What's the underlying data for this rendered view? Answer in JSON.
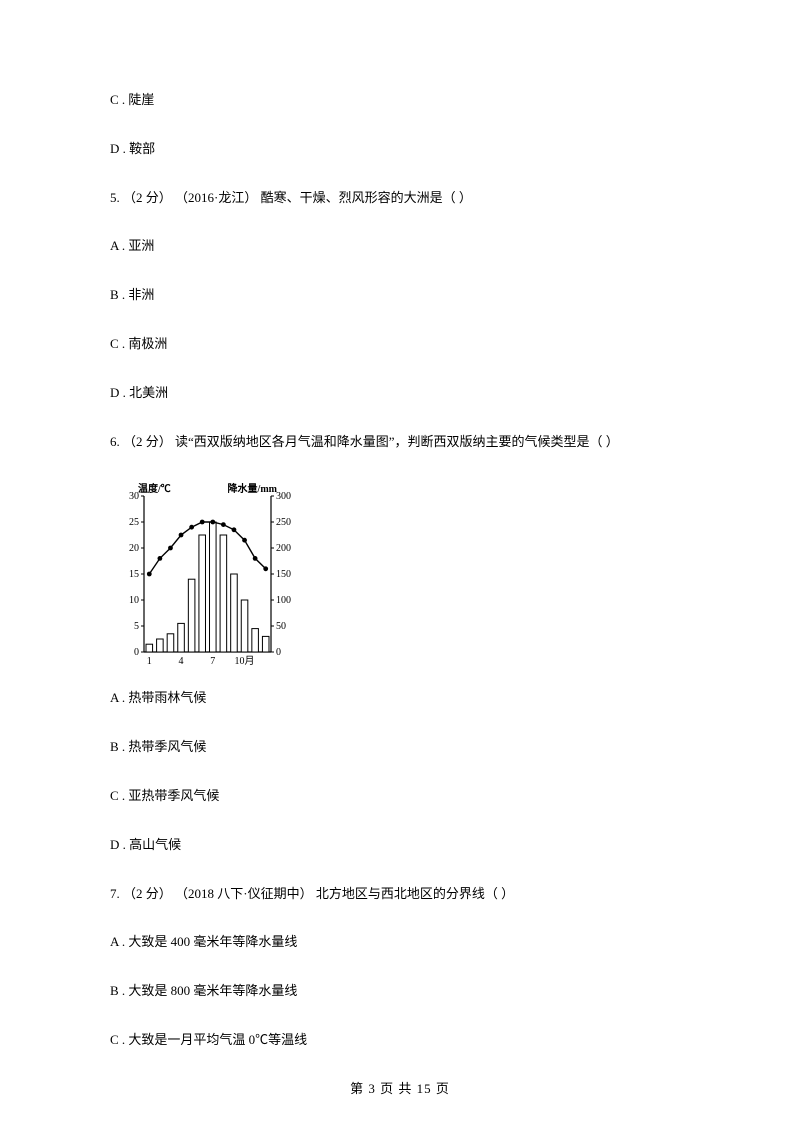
{
  "lines": {
    "optC4": "C . 陡崖",
    "optD4": "D . 鞍部",
    "q5": "5.  （2 分） （2016·龙江） 酷寒、干燥、烈风形容的大洲是（     ）",
    "optA5": "A . 亚洲",
    "optB5": "B . 非洲",
    "optC5": "C . 南极洲",
    "optD5": "D . 北美洲",
    "q6": "6.  （2 分）  读“西双版纳地区各月气温和降水量图”，判断西双版纳主要的气候类型是（     ）",
    "optA6": "A . 热带雨林气候",
    "optB6": "B . 热带季风气候",
    "optC6": "C . 亚热带季风气候",
    "optD6": "D . 高山气候",
    "q7": "7.  （2 分） （2018 八下·仪征期中） 北方地区与西北地区的分界线（     ）",
    "optA7": "A . 大致是 400 毫米年等降水量线",
    "optB7": "B . 大致是 800 毫米年等降水量线",
    "optC7": "C . 大致是一月平均气温 0℃等温线"
  },
  "footer": "第  3  页  共  15  页",
  "chart": {
    "type": "combo-bar-line",
    "width": 195,
    "height": 190,
    "y_left_label": "温度/℃",
    "y_right_label": "降水量/mm",
    "y_left_ticks": [
      0,
      5,
      10,
      15,
      20,
      25,
      30
    ],
    "y_right_ticks": [
      0,
      50,
      100,
      150,
      200,
      250,
      300
    ],
    "x_ticks": [
      "1",
      "4",
      "7",
      "10月"
    ],
    "months": [
      1,
      2,
      3,
      4,
      5,
      6,
      7,
      8,
      9,
      10,
      11,
      12
    ],
    "temp_values": [
      15,
      18,
      20,
      22.5,
      24,
      25,
      25,
      24.5,
      23.5,
      21.5,
      18,
      16
    ],
    "precip_values": [
      15,
      25,
      35,
      55,
      140,
      225,
      250,
      225,
      150,
      100,
      45,
      30
    ],
    "colors": {
      "axis": "#000000",
      "bar_fill": "#ffffff",
      "bar_stroke": "#000000",
      "line": "#000000",
      "marker": "#000000",
      "text": "#000000",
      "background": "#ffffff"
    },
    "stroke_widths": {
      "axis": 1.2,
      "bar": 1,
      "line": 1.4
    },
    "marker_radius": 2.4,
    "label_fontsize": 10,
    "tick_fontsize": 10
  }
}
